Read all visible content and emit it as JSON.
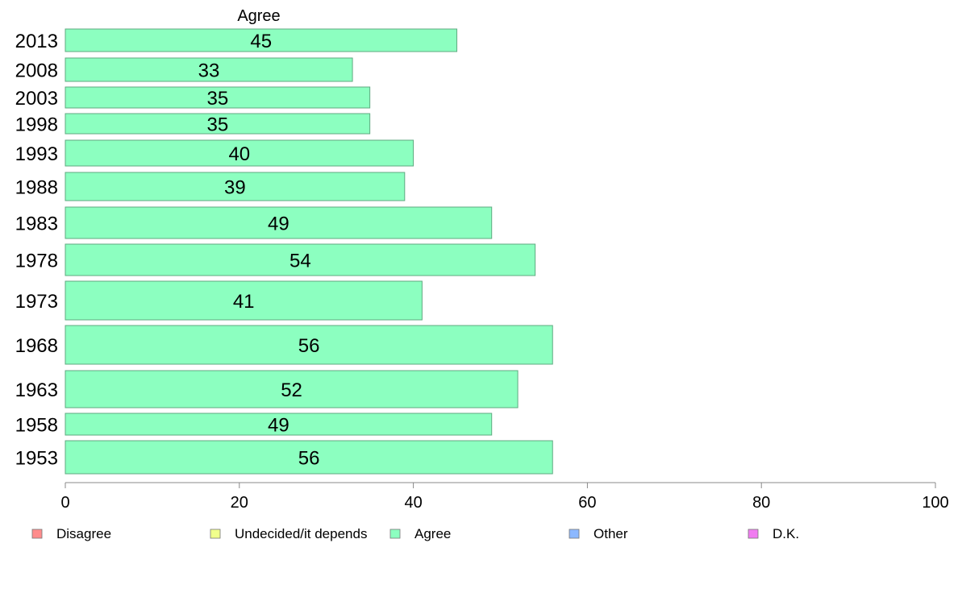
{
  "chart_data": {
    "type": "bar",
    "orientation": "horizontal",
    "categories": [
      "2013",
      "2008",
      "2003",
      "1998",
      "1993",
      "1988",
      "1983",
      "1978",
      "1973",
      "1968",
      "1963",
      "1958",
      "1953"
    ],
    "series": [
      {
        "name": "Agree",
        "values": [
          45,
          33,
          35,
          35,
          40,
          39,
          49,
          54,
          41,
          56,
          52,
          49,
          56
        ]
      }
    ],
    "column_heading": "Agree",
    "xlim": [
      0,
      100
    ],
    "x_ticks": [
      0,
      20,
      40,
      60,
      80,
      100
    ],
    "grid": false,
    "legend": {
      "placement": "bottom",
      "entries": [
        {
          "label": "Disagree",
          "color": "#ff8c8c"
        },
        {
          "label": "Undecided/it depends",
          "color": "#f0ff8c"
        },
        {
          "label": "Agree",
          "color": "#8cffc0"
        },
        {
          "label": "Other",
          "color": "#8cb8ff"
        },
        {
          "label": "D.K.",
          "color": "#f07cf0"
        }
      ]
    },
    "colors": {
      "agree_fill": "#8cffc0",
      "bar_stroke": "#5faa80",
      "axis": "#888888"
    }
  }
}
